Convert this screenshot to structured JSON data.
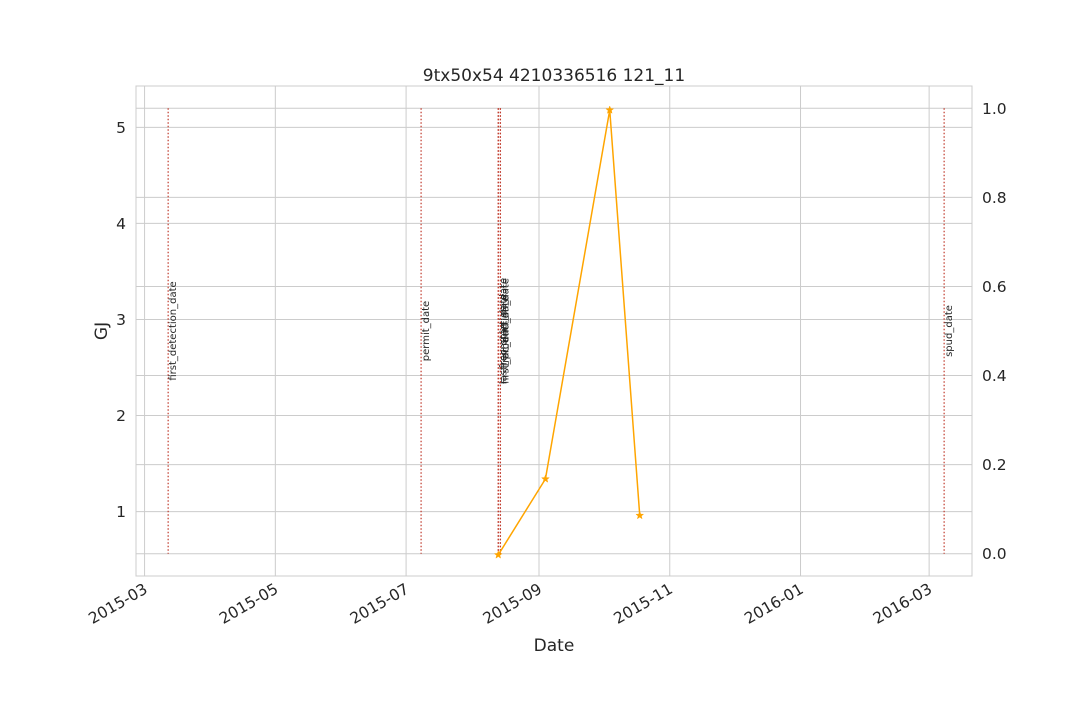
{
  "chart_data": {
    "type": "line",
    "title": "9tx50x54 4210336516 121_11",
    "xlabel": "Date",
    "ylabel": "GJ",
    "ylabel_color": "#1f77b4",
    "xlim": [
      "2015-02-25",
      "2016-03-21"
    ],
    "ylim": [
      0.33,
      5.43
    ],
    "y2lim": [
      -0.05,
      1.05
    ],
    "x_ticks": [
      "2015-03",
      "2015-05",
      "2015-07",
      "2015-09",
      "2015-11",
      "2016-01",
      "2016-03"
    ],
    "y_ticks": [
      "1",
      "2",
      "3",
      "4",
      "5"
    ],
    "y2_ticks": [
      "0.0",
      "0.2",
      "0.4",
      "0.6",
      "0.8",
      "1.0"
    ],
    "grid": true,
    "series": [
      {
        "color": "#ffa500",
        "marker": "star",
        "x": [
          "2015-08-13",
          "2015-09-04",
          "2015-10-04",
          "2015-10-18"
        ],
        "y": [
          0.55,
          1.34,
          5.18,
          0.96
        ]
      }
    ],
    "events": [
      {
        "label": "first_detection_date",
        "date": "2015-03-12"
      },
      {
        "label": "permit_date",
        "date": "2015-07-08"
      },
      {
        "label": "frac_start_date",
        "date": "2015-08-13"
      },
      {
        "label": "last_completion_date",
        "date": "2015-08-13"
      },
      {
        "label": "frac_end_date",
        "date": "2015-08-14"
      },
      {
        "label": "first_production_date",
        "date": "2015-08-14"
      },
      {
        "label": "spud_date",
        "date": "2016-03-08"
      }
    ],
    "event_color": "#c0392b"
  }
}
